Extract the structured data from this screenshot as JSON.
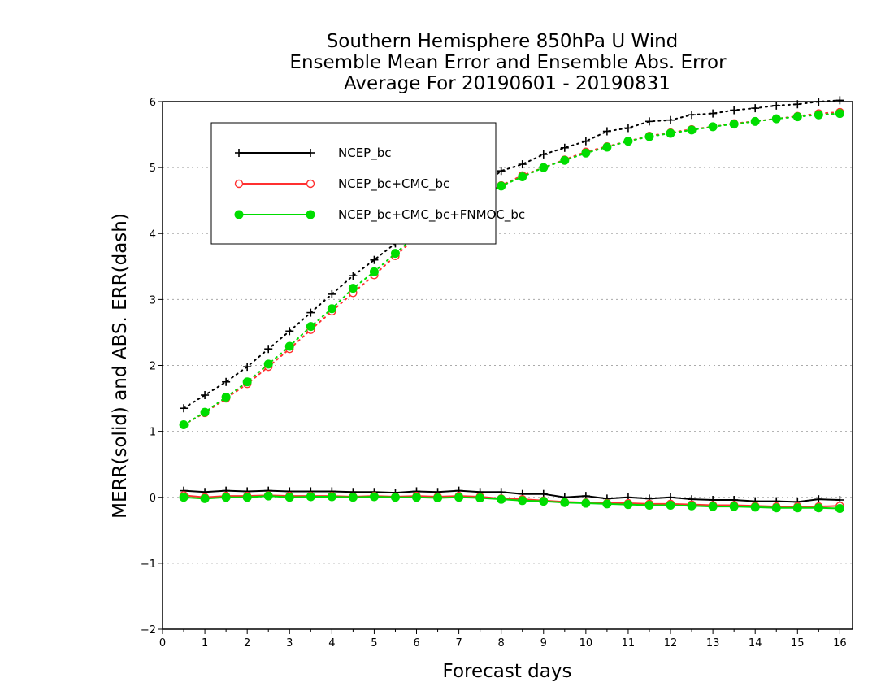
{
  "chart_data": {
    "type": "line",
    "title_lines": [
      "Southern Hemisphere 850hPa U Wind",
      "Ensemble Mean Error and Ensemble Abs. Error",
      "Average For 20190601 - 20190831"
    ],
    "xlabel": "Forecast days",
    "ylabel": "MERR(solid) and ABS. ERR(dash)",
    "xlim": [
      0,
      16.3
    ],
    "ylim": [
      -2,
      6
    ],
    "xticks": [
      "0",
      "1",
      "2",
      "3",
      "4",
      "5",
      "6",
      "7",
      "8",
      "9",
      "10",
      "11",
      "12",
      "13",
      "14",
      "15",
      "16"
    ],
    "yticks": [
      "6",
      "5",
      "4",
      "3",
      "2",
      "1",
      "0",
      "−1",
      "−2"
    ],
    "grid": "horizontal dotted",
    "legend_position": "top-left",
    "x": [
      0.5,
      1,
      1.5,
      2,
      2.5,
      3,
      3.5,
      4,
      4.5,
      5,
      5.5,
      6,
      6.5,
      7,
      7.5,
      8,
      8.5,
      9,
      9.5,
      10,
      10.5,
      11,
      11.5,
      12,
      12.5,
      13,
      13.5,
      14,
      14.5,
      15,
      15.5,
      16
    ],
    "series": [
      {
        "name": "NCEP_bc",
        "color": "#000000",
        "marker": "plus",
        "merr": [
          0.1,
          0.08,
          0.1,
          0.09,
          0.1,
          0.09,
          0.09,
          0.09,
          0.08,
          0.08,
          0.07,
          0.09,
          0.08,
          0.1,
          0.08,
          0.08,
          0.05,
          0.05,
          0.0,
          0.02,
          -0.02,
          0.0,
          -0.02,
          0.0,
          -0.03,
          -0.04,
          -0.04,
          -0.06,
          -0.06,
          -0.07,
          -0.03,
          -0.04
        ],
        "abs_err": [
          1.35,
          1.55,
          1.75,
          1.98,
          2.25,
          2.52,
          2.8,
          3.08,
          3.36,
          3.6,
          3.85,
          4.07,
          4.3,
          4.5,
          4.7,
          4.95,
          5.05,
          5.2,
          5.3,
          5.4,
          5.55,
          5.6,
          5.7,
          5.72,
          5.8,
          5.82,
          5.87,
          5.9,
          5.94,
          5.96,
          6.0,
          6.02
        ]
      },
      {
        "name": "NCEP_bc+CMC_bc",
        "color": "#ff3030",
        "marker": "open-circle",
        "merr": [
          0.03,
          0.0,
          0.02,
          0.02,
          0.03,
          0.02,
          0.02,
          0.02,
          0.01,
          0.02,
          0.01,
          0.02,
          0.01,
          0.02,
          0.01,
          -0.02,
          -0.03,
          -0.05,
          -0.07,
          -0.08,
          -0.09,
          -0.09,
          -0.1,
          -0.1,
          -0.11,
          -0.12,
          -0.12,
          -0.13,
          -0.14,
          -0.14,
          -0.14,
          -0.13
        ],
        "abs_err": [
          1.1,
          1.28,
          1.5,
          1.72,
          1.98,
          2.25,
          2.54,
          2.82,
          3.1,
          3.37,
          3.66,
          3.95,
          4.2,
          4.4,
          4.55,
          4.73,
          4.88,
          5.0,
          5.12,
          5.24,
          5.32,
          5.4,
          5.48,
          5.53,
          5.58,
          5.62,
          5.67,
          5.7,
          5.74,
          5.78,
          5.82,
          5.84
        ]
      },
      {
        "name": "NCEP_bc+CMC_bc+FNMOC_bc",
        "color": "#00dd00",
        "marker": "filled-circle",
        "merr": [
          0.0,
          -0.02,
          0.0,
          0.0,
          0.02,
          0.0,
          0.01,
          0.01,
          0.0,
          0.01,
          0.0,
          0.0,
          -0.01,
          0.0,
          -0.01,
          -0.03,
          -0.05,
          -0.06,
          -0.08,
          -0.09,
          -0.1,
          -0.11,
          -0.12,
          -0.12,
          -0.13,
          -0.14,
          -0.14,
          -0.15,
          -0.16,
          -0.16,
          -0.16,
          -0.17
        ],
        "abs_err": [
          1.1,
          1.29,
          1.52,
          1.75,
          2.02,
          2.29,
          2.59,
          2.86,
          3.17,
          3.42,
          3.7,
          3.97,
          4.2,
          4.4,
          4.55,
          4.72,
          4.86,
          5.0,
          5.11,
          5.22,
          5.31,
          5.4,
          5.47,
          5.52,
          5.57,
          5.62,
          5.66,
          5.7,
          5.74,
          5.77,
          5.8,
          5.82
        ]
      }
    ]
  }
}
